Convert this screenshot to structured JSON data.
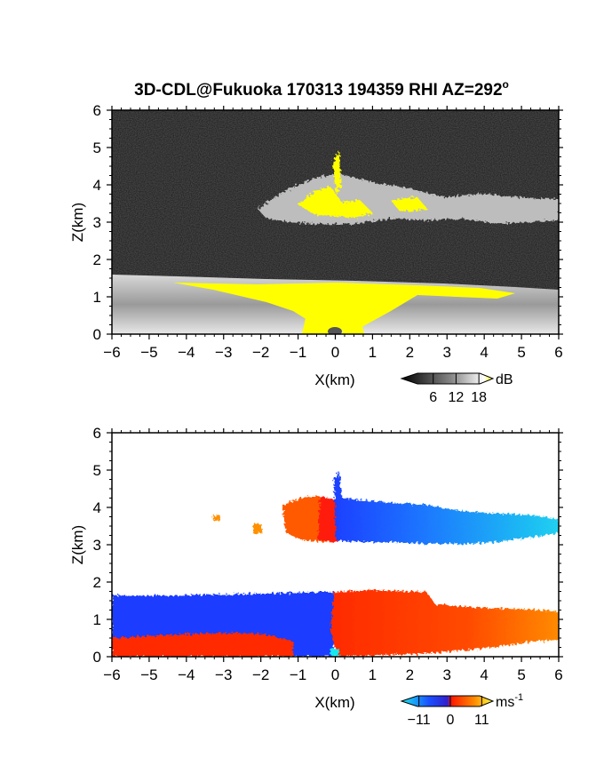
{
  "title_main": "3D-CDL@Fukuoka 170313 194359 RHI AZ=292",
  "title_degree": "o",
  "colors": {
    "background_reflectivity": "#1a1a1a",
    "highlight": "#ffff00",
    "velocity_negative_strong": "#1a3cff",
    "velocity_negative_weak": "#19c8f0",
    "velocity_positive_strong": "#ff2a00",
    "velocity_positive_weak": "#ff9000"
  },
  "chart_data": [
    {
      "type": "heatmap",
      "panel": "reflectivity",
      "xlabel": "X(km)",
      "ylabel": "Z(km)",
      "xlim": [
        -6,
        6
      ],
      "ylim": [
        0,
        6
      ],
      "x_ticks": [
        "-6",
        "-5",
        "-4",
        "-3",
        "-2",
        "-1",
        "0",
        "1",
        "2",
        "3",
        "4",
        "5",
        "6"
      ],
      "y_ticks": [
        "0",
        "1",
        "2",
        "3",
        "4",
        "5",
        "6"
      ],
      "colorbar": {
        "unit": "dB",
        "ticks": [
          "6",
          "12",
          "18"
        ],
        "range": [
          0,
          21
        ]
      },
      "features": {
        "low_layer": {
          "x": [
            -6,
            6
          ],
          "z_top_left": 1.6,
          "z_top_right": 1.0
        },
        "cloud_layer": {
          "x": [
            -1.5,
            6
          ],
          "z": [
            2.8,
            4.4
          ]
        },
        "peak": {
          "x": 0.05,
          "z": 4.8
        }
      }
    },
    {
      "type": "heatmap",
      "panel": "velocity",
      "xlabel": "X(km)",
      "ylabel": "Z(km)",
      "xlim": [
        -6,
        6
      ],
      "ylim": [
        0,
        6
      ],
      "x_ticks": [
        "-6",
        "-5",
        "-4",
        "-3",
        "-2",
        "-1",
        "0",
        "1",
        "2",
        "3",
        "4",
        "5",
        "6"
      ],
      "y_ticks": [
        "0",
        "1",
        "2",
        "3",
        "4",
        "5",
        "6"
      ],
      "colorbar": {
        "unit": "ms",
        "unit_exponent": "-1",
        "ticks": [
          "-11",
          "0",
          "11"
        ],
        "range": [
          -14,
          14
        ]
      },
      "features": {
        "low_layer": {
          "x": [
            -6,
            6
          ],
          "z_top_left": 1.6,
          "z_top_right": 1.2
        },
        "cloud_layer": {
          "x": [
            -1.5,
            6
          ],
          "z": [
            2.9,
            4.2
          ]
        },
        "peak": {
          "x": 0.05,
          "z": 4.9
        }
      }
    }
  ]
}
